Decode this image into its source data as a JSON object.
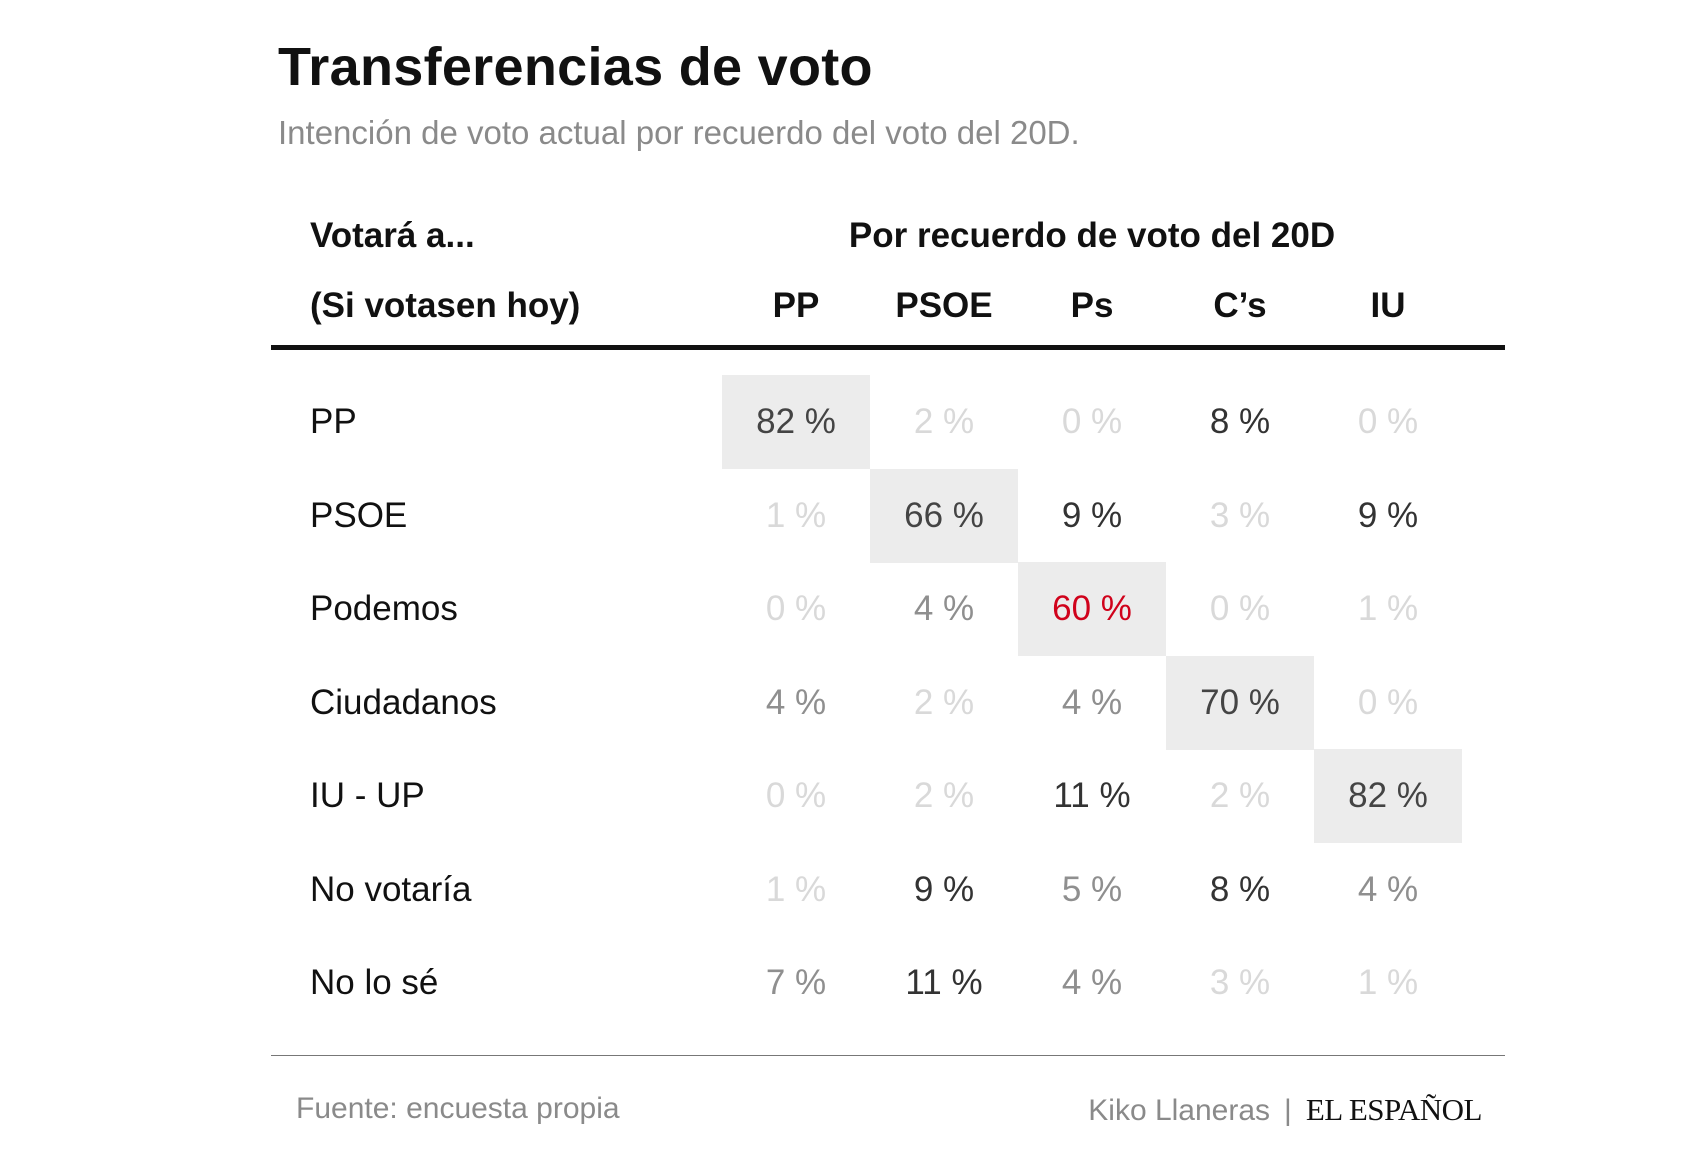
{
  "chart_data": {
    "type": "table",
    "title": "Transferencias de voto",
    "subtitle": "Intención de voto actual por recuerdo del voto del 20D.",
    "row_header": [
      "Votará a...",
      "(Si votasen hoy)"
    ],
    "column_group_header": "Por recuerdo de voto del 20D",
    "columns": [
      "PP",
      "PSOE",
      "Ps",
      "C’s",
      "IU"
    ],
    "rows": [
      {
        "label": "PP",
        "values": [
          "82 %",
          "2 %",
          "0 %",
          "8 %",
          "0 %"
        ]
      },
      {
        "label": "PSOE",
        "values": [
          "1 %",
          "66 %",
          "9 %",
          "3 %",
          "9 %"
        ]
      },
      {
        "label": "Podemos",
        "values": [
          "0 %",
          "4 %",
          "60 %",
          "0 %",
          "1 %"
        ]
      },
      {
        "label": "Ciudadanos",
        "values": [
          "4 %",
          "2 %",
          "4 %",
          "70 %",
          "0 %"
        ]
      },
      {
        "label": "IU - UP",
        "values": [
          "0 %",
          "2 %",
          "11 %",
          "2 %",
          "82 %"
        ]
      },
      {
        "label": "No votaría",
        "values": [
          "1 %",
          "9 %",
          "5 %",
          "8 %",
          "4 %"
        ]
      },
      {
        "label": "No lo sé",
        "values": [
          "7 %",
          "11 %",
          "4 %",
          "3 %",
          "1 %"
        ]
      }
    ],
    "numeric": [
      [
        82,
        2,
        0,
        8,
        0
      ],
      [
        1,
        66,
        9,
        3,
        9
      ],
      [
        0,
        4,
        60,
        0,
        1
      ],
      [
        4,
        2,
        4,
        70,
        0
      ],
      [
        0,
        2,
        11,
        2,
        82
      ],
      [
        1,
        9,
        5,
        8,
        4
      ],
      [
        7,
        11,
        4,
        3,
        1
      ]
    ],
    "highlighted_diagonal": true,
    "accent_cell": {
      "row": "Podemos",
      "column": "Ps",
      "color": "#d0021b"
    }
  },
  "footer": {
    "source": "Fuente: encuesta propia",
    "author": "Kiko Llaneras",
    "separator": "|",
    "brand": "EL ESPAÑOL"
  },
  "colors": {
    "text_dark": "#111111",
    "text_gray": "#8a8a8a",
    "highlight_bg": "#ececec",
    "accent": "#d0021b"
  }
}
